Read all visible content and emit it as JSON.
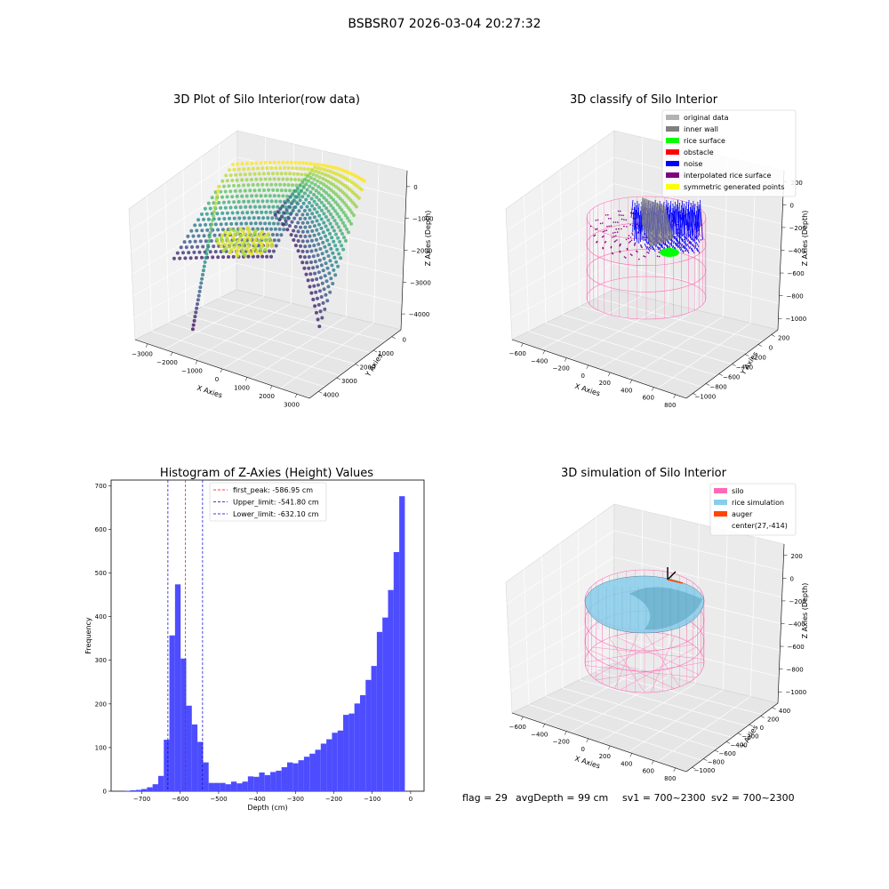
{
  "suptitle": "BSBSR07 2026-03-04 20:27:32",
  "footer": {
    "flag": "flag = 29",
    "avgDepth": "avgDepth = 99 cm",
    "sv1": "sv1 = 700~2300",
    "sv2": "sv2 = 700~2300"
  },
  "colors": {
    "hist_bar": "#4d4dff",
    "first_peak": "#ff0000",
    "limit": "#0000cc",
    "silo": "#ff69b4",
    "rice": "#87ceeb",
    "auger": "#ff4500",
    "noise": "#0000ff",
    "inner_wall": "#808080",
    "rice_surface": "#00ff00",
    "interp": "#800080",
    "symmetric": "#ffff00",
    "original": "#b3b3b3",
    "obstacle": "#ff0000"
  },
  "chart_data": [
    {
      "type": "scatter",
      "title": "3D Plot of Silo Interior(row data)",
      "xlabel": "X Axies",
      "ylabel": "Y Axies",
      "zlabel": "Z Axies (Depth)",
      "xticks": [
        "−3000",
        "−2000",
        "−1000",
        "0",
        "1000",
        "2000",
        "3000"
      ],
      "yticks": [
        "0",
        "1000",
        "2000",
        "3000",
        "4000"
      ],
      "zticks": [
        "0",
        "−1000",
        "−2000",
        "−3000",
        "−4000"
      ],
      "colormap": "viridis"
    },
    {
      "type": "scatter",
      "title": "3D classify of Silo Interior",
      "xlabel": "X Axies",
      "ylabel": "Y Axies",
      "zlabel": "Z Axies (Depth)",
      "xticks": [
        "−600",
        "−400",
        "−200",
        "0",
        "200",
        "400",
        "600",
        "800"
      ],
      "yticks": [
        "200",
        "0",
        "−200",
        "−400",
        "−600",
        "−800",
        "−1000"
      ],
      "zticks": [
        "200",
        "0",
        "−200",
        "−400",
        "−600",
        "−800",
        "−1000"
      ],
      "legend": [
        {
          "label": "original data",
          "color": "#b3b3b3"
        },
        {
          "label": "inner wall",
          "color": "#808080"
        },
        {
          "label": "rice surface",
          "color": "#00ff00"
        },
        {
          "label": "obstacle",
          "color": "#ff0000"
        },
        {
          "label": "noise",
          "color": "#0000ff"
        },
        {
          "label": "interpolated rice surface",
          "color": "#800080"
        },
        {
          "label": "symmetric generated points",
          "color": "#ffff00"
        }
      ],
      "legend_position": "upper-right"
    },
    {
      "type": "bar",
      "title": "Histogram of Z-Axies (Height) Values",
      "xlabel": "Depth (cm)",
      "ylabel": "Frequency",
      "xlim": [
        -780,
        35
      ],
      "ylim": [
        0,
        713
      ],
      "xticks": [
        -700,
        -600,
        -500,
        -400,
        -300,
        -200,
        -100,
        0
      ],
      "yticks": [
        0,
        100,
        200,
        300,
        400,
        500,
        600,
        700
      ],
      "tick_labels_x": [
        "−700",
        "−600",
        "−500",
        "−400",
        "−300",
        "−200",
        "−100",
        "0"
      ],
      "tick_labels_y": [
        "0",
        "100",
        "200",
        "300",
        "400",
        "500",
        "600",
        "700"
      ],
      "bin_width": 14.6,
      "bin_start": -745,
      "values": [
        1,
        2,
        3,
        5,
        9,
        16,
        35,
        118,
        357,
        474,
        304,
        196,
        153,
        113,
        66,
        19,
        19,
        19,
        16,
        22,
        18,
        22,
        34,
        33,
        43,
        37,
        44,
        47,
        55,
        66,
        64,
        71,
        79,
        86,
        95,
        109,
        119,
        134,
        139,
        175,
        178,
        201,
        220,
        255,
        287,
        365,
        398,
        461,
        548,
        676
      ],
      "vlines": [
        {
          "label": "first_peak: -586.95 cm",
          "x": -586.95,
          "color": "#ff0000"
        },
        {
          "label": "Upper_limit: -541.80 cm",
          "x": -541.8,
          "color": "#0000cc"
        },
        {
          "label": "Lower_limit: -632.10 cm",
          "x": -632.1,
          "color": "#0000cc"
        }
      ],
      "legend_position": "upper-right"
    },
    {
      "type": "other",
      "title": "3D simulation of Silo Interior",
      "xlabel": "X Axies",
      "ylabel": "Y Axies",
      "zlabel": "Z Axies (Depth)",
      "xticks": [
        "−600",
        "−400",
        "−200",
        "0",
        "200",
        "400",
        "600",
        "800"
      ],
      "yticks": [
        "400",
        "200",
        "0",
        "−200",
        "−400",
        "−600",
        "−800",
        "−1000"
      ],
      "zticks": [
        "200",
        "0",
        "−200",
        "−400",
        "−600",
        "−800",
        "−1000"
      ],
      "legend": [
        {
          "label": "silo",
          "color": "#ff69b4"
        },
        {
          "label": "rice simulation",
          "color": "#87ceeb"
        },
        {
          "label": "auger",
          "color": "#ff4500"
        },
        {
          "label": "center(27,-414)",
          "color": ""
        }
      ],
      "legend_position": "upper-right"
    }
  ]
}
